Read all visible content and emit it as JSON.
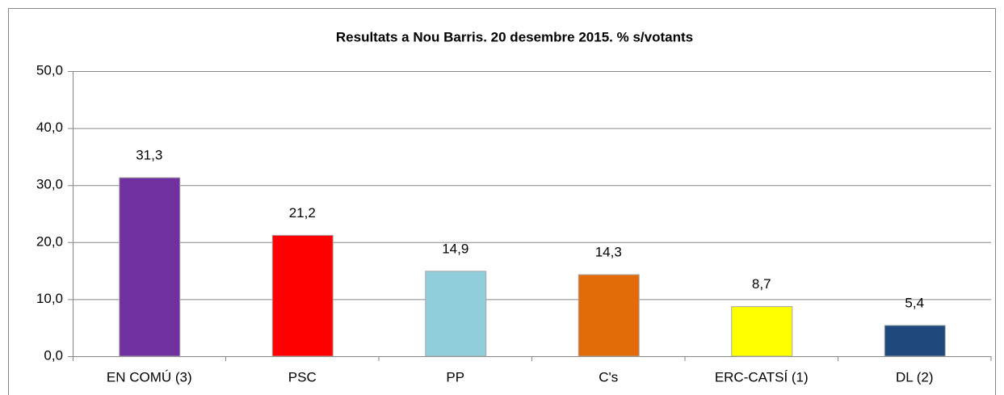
{
  "chart_data": {
    "type": "bar",
    "title": "Resultats a Nou Barris. 20 desembre 2015. % s/votants",
    "categories": [
      "EN COMÚ (3)",
      "PSC",
      "PP",
      "C's",
      "ERC-CATSÍ (1)",
      "DL (2)"
    ],
    "values": [
      31.3,
      21.2,
      14.9,
      14.3,
      8.7,
      5.4
    ],
    "value_labels": [
      "31,3",
      "21,2",
      "14,9",
      "14,3",
      "8,7",
      "5,4"
    ],
    "colors": [
      "#7030a0",
      "#ff0000",
      "#92cddc",
      "#e36c09",
      "#ffff00",
      "#1f497d"
    ],
    "ylim": [
      0,
      50
    ],
    "yticks": [
      {
        "value": 0,
        "label": "0,0"
      },
      {
        "value": 10,
        "label": "10,0"
      },
      {
        "value": 20,
        "label": "20,0"
      },
      {
        "value": 30,
        "label": "30,0"
      },
      {
        "value": 40,
        "label": "40,0"
      },
      {
        "value": 50,
        "label": "50,0"
      }
    ],
    "grid": true
  }
}
